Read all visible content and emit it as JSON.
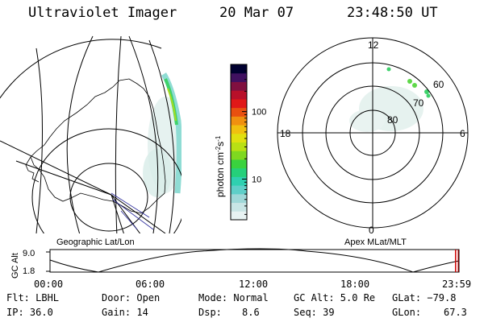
{
  "header": {
    "instrument": "Ultraviolet Imager",
    "date": "20 Mar 07",
    "time": "23:48:50 UT"
  },
  "colorbar": {
    "unit_label": "photon cm",
    "unit_sup1": "-2",
    "unit_mid": "s",
    "unit_sup2": "-1",
    "ticks": [
      {
        "label": "100",
        "value": 100
      },
      {
        "label": "10",
        "value": 10
      }
    ],
    "colors": [
      "#e8f3f3",
      "#c9e6e6",
      "#9fd8d8",
      "#5fcfc8",
      "#2fd0b0",
      "#25d07a",
      "#3ad23e",
      "#7fd820",
      "#b9e014",
      "#e0e010",
      "#f0c010",
      "#f09010",
      "#e85010",
      "#e01818",
      "#b8102a",
      "#801040",
      "#401060",
      "#000030"
    ]
  },
  "polar": {
    "mlt_labels": {
      "top": "12",
      "left": "18",
      "right": "6",
      "bottom": "0"
    },
    "lat_labels": [
      {
        "label": "60",
        "value": 60
      },
      {
        "label": "70",
        "value": 70
      },
      {
        "label": "80",
        "value": 80
      }
    ]
  },
  "timeline": {
    "left_title": "Geographic Lat/Lon",
    "right_title": "Apex MLat/MLT",
    "ylabel": "GC Alt",
    "yticks": [
      "9.0",
      "1.8"
    ],
    "xticks": [
      "00:00",
      "06:00",
      "12:00",
      "18:00",
      "23:59"
    ],
    "cursor_hours": 23.8
  },
  "info": {
    "flt": "Flt: LBHL",
    "ip": "IP: 36.0",
    "door": "Door: Open",
    "gain": "Gain: 14",
    "mode": "Mode: Normal",
    "dsp_label": "Dsp:",
    "dsp_value": "8.6",
    "gcalt": "GC Alt: 5.0 Re",
    "seq": "Seq: 39",
    "glat": "GLat: −79.8",
    "glon_label": "GLon:",
    "glon_value": "67.3"
  }
}
